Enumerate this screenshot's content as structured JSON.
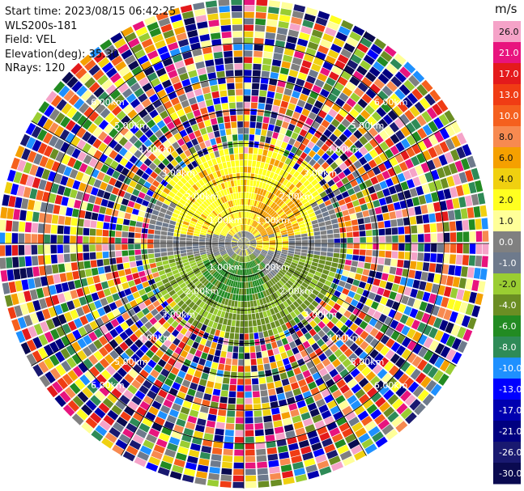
{
  "header": {
    "start_time": "Start time: 2023/08/15 06:42:25",
    "instrument": "WLS200s-181",
    "field": "Field: VEL",
    "elevation": "Elevation(deg): 35.30",
    "nrays": "NRays: 120"
  },
  "chart_data": {
    "type": "polar-ppi",
    "n_rays": 120,
    "n_gates": 38,
    "max_range_km": 7.35,
    "range_rings_km": [
      1.0,
      2.0,
      3.0,
      4.0,
      5.0,
      6.0
    ],
    "ring_labels": [
      "1.00km",
      "2.00km",
      "3.00km",
      "4.00km",
      "5.00km",
      "6.00km"
    ],
    "unit": "m/s",
    "colorbar": [
      {
        "label": "26.0",
        "color": "#f5a3c8"
      },
      {
        "label": "21.0",
        "color": "#e8147e"
      },
      {
        "label": "17.0",
        "color": "#e41a1c"
      },
      {
        "label": "13.0",
        "color": "#f03c14"
      },
      {
        "label": "10.0",
        "color": "#f5601e"
      },
      {
        "label": "8.0",
        "color": "#f78a50"
      },
      {
        "label": "6.0",
        "color": "#f5a000"
      },
      {
        "label": "4.0",
        "color": "#f0d010"
      },
      {
        "label": "2.0",
        "color": "#ffff20"
      },
      {
        "label": "1.0",
        "color": "#ffff99"
      },
      {
        "label": "0.0",
        "color": "#808080"
      },
      {
        "label": "-1.0",
        "color": "#6e7a8c"
      },
      {
        "label": "-2.0",
        "color": "#9acd32"
      },
      {
        "label": "-4.0",
        "color": "#6b8e23"
      },
      {
        "label": "-6.0",
        "color": "#228b22"
      },
      {
        "label": "-8.0",
        "color": "#2e8b57"
      },
      {
        "label": "-10.0",
        "color": "#1e90ff"
      },
      {
        "label": "-13.0",
        "color": "#0000ff"
      },
      {
        "label": "-17.0",
        "color": "#0000b0"
      },
      {
        "label": "-21.0",
        "color": "#000080"
      },
      {
        "label": "-26.0",
        "color": "#191970"
      },
      {
        "label": "-30.0",
        "color": "#0a0a50"
      }
    ],
    "noise_range_km": 3.0,
    "field_regions": [
      {
        "description_label": "upper",
        "dominant_value": 2.0
      },
      {
        "description_label": "upper-right",
        "dominant_value": 6.0
      },
      {
        "description_label": "center",
        "dominant_value": 0.0
      },
      {
        "description_label": "lower",
        "dominant_value": -4.0
      },
      {
        "description_label": "lower-center",
        "dominant_value": -6.0
      }
    ]
  }
}
